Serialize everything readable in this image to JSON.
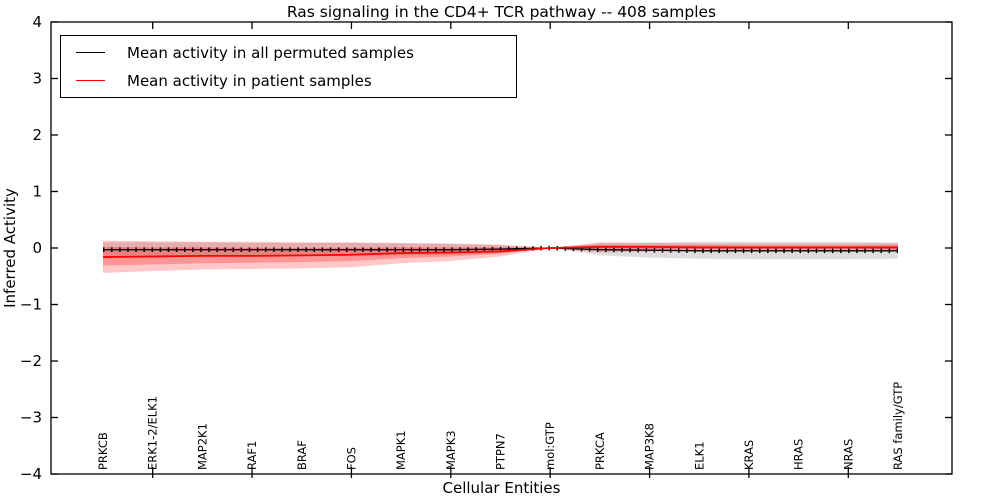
{
  "chart_data": {
    "type": "line",
    "title": "Ras signaling in the CD4+ TCR pathway -- 408 samples",
    "xlabel": "Cellular Entities",
    "ylabel": "Inferred Activity",
    "ylim": [
      -4,
      4
    ],
    "yticks": [
      -4,
      -3,
      -2,
      -1,
      0,
      1,
      2,
      3,
      4
    ],
    "grid": false,
    "legend_position": "upper left",
    "categories": [
      "PRKCB",
      "ERK1-2/ELK1",
      "MAP2K1",
      "RAF1",
      "BRAF",
      "FOS",
      "MAPK1",
      "MAPK3",
      "PTPN7",
      "mol:GTP",
      "PRKCA",
      "MAP3K8",
      "ELK1",
      "KRAS",
      "HRAS",
      "NRAS",
      "RAS family/GTP"
    ],
    "series": [
      {
        "name": "Mean activity in all permuted samples",
        "color": "#000000",
        "band_color": "#000000",
        "band_opacity": 0.13,
        "values": [
          -0.03,
          -0.03,
          -0.03,
          -0.03,
          -0.03,
          -0.03,
          -0.03,
          -0.03,
          -0.02,
          0.0,
          -0.03,
          -0.04,
          -0.05,
          -0.05,
          -0.05,
          -0.05,
          -0.05
        ],
        "band_hi": [
          0.1,
          0.1,
          0.1,
          0.09,
          0.09,
          0.09,
          0.08,
          0.07,
          0.05,
          0.0,
          0.08,
          0.1,
          0.11,
          0.11,
          0.11,
          0.11,
          0.1
        ],
        "band_lo": [
          -0.14,
          -0.14,
          -0.14,
          -0.14,
          -0.14,
          -0.14,
          -0.13,
          -0.12,
          -0.09,
          0.0,
          -0.13,
          -0.17,
          -0.19,
          -0.2,
          -0.2,
          -0.2,
          -0.19
        ]
      },
      {
        "name": "Mean activity in patient samples",
        "color": "#ff0000",
        "band_color": "#ff0000",
        "band_outer_opacity": 0.22,
        "band_inner_opacity": 0.25,
        "values": [
          -0.16,
          -0.15,
          -0.14,
          -0.14,
          -0.13,
          -0.12,
          -0.09,
          -0.08,
          -0.06,
          0.0,
          0.02,
          0.02,
          0.01,
          0.01,
          0.01,
          0.01,
          0.01
        ],
        "band_outer_hi": [
          0.13,
          0.12,
          0.11,
          0.11,
          0.1,
          0.1,
          0.09,
          0.08,
          0.06,
          0.0,
          0.1,
          0.09,
          0.08,
          0.08,
          0.08,
          0.08,
          0.08
        ],
        "band_outer_lo": [
          -0.44,
          -0.41,
          -0.38,
          -0.37,
          -0.36,
          -0.34,
          -0.27,
          -0.23,
          -0.15,
          0.0,
          -0.08,
          -0.06,
          -0.05,
          -0.05,
          -0.05,
          -0.05,
          -0.06
        ],
        "band_inner_hi": [
          0.02,
          0.01,
          0.01,
          0.0,
          0.0,
          0.0,
          0.01,
          0.01,
          0.01,
          0.0,
          0.06,
          0.05,
          0.05,
          0.04,
          0.04,
          0.04,
          0.05
        ],
        "band_inner_lo": [
          -0.31,
          -0.29,
          -0.27,
          -0.26,
          -0.25,
          -0.23,
          -0.18,
          -0.15,
          -0.1,
          0.0,
          -0.04,
          -0.03,
          -0.02,
          -0.02,
          -0.02,
          -0.02,
          -0.03
        ]
      }
    ]
  },
  "legend": {
    "entries": [
      {
        "label": "Mean activity in all permuted samples",
        "color": "#000000"
      },
      {
        "label": "Mean activity in patient samples",
        "color": "#ff0000"
      }
    ]
  }
}
